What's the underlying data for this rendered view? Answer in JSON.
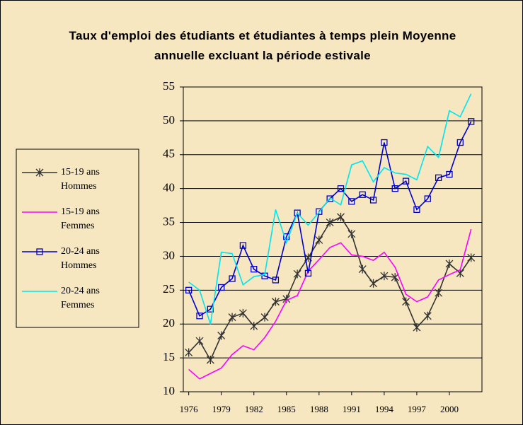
{
  "chart_data": {
    "type": "line",
    "title": "Taux d'emploi des étudiants et étudiantes à temps plein Moyenne annuelle excluant la période estivale",
    "x": [
      1976,
      1977,
      1978,
      1979,
      1980,
      1981,
      1982,
      1983,
      1984,
      1985,
      1986,
      1987,
      1988,
      1989,
      1990,
      1991,
      1992,
      1993,
      1994,
      1995,
      1996,
      1997,
      1998,
      1999,
      2000,
      2001,
      2002
    ],
    "series": [
      {
        "name": "15-19 ans Hommes",
        "color": "#333333",
        "marker": "asterisk",
        "values": [
          15.8,
          17.5,
          14.7,
          18.3,
          21.0,
          21.6,
          19.7,
          21.0,
          23.3,
          23.7,
          27.4,
          29.8,
          32.4,
          35.0,
          35.8,
          33.3,
          28.1,
          26.0,
          27.1,
          26.9,
          23.3,
          19.5,
          21.2,
          24.6,
          28.9,
          27.5,
          29.8
        ]
      },
      {
        "name": "15-19 ans Femmes",
        "color": "#ff00ff",
        "marker": "none",
        "values": [
          13.3,
          11.9,
          12.7,
          13.5,
          15.5,
          16.8,
          16.2,
          18.0,
          20.4,
          23.5,
          24.2,
          27.8,
          29.5,
          31.3,
          32.0,
          30.2,
          30.0,
          29.4,
          30.6,
          28.4,
          24.4,
          23.3,
          24.0,
          26.5,
          27.3,
          28.0,
          34.0
        ]
      },
      {
        "name": "20-24 ans Hommes",
        "color": "#0000cc",
        "marker": "square",
        "values": [
          25.0,
          21.2,
          22.2,
          25.4,
          26.7,
          31.6,
          28.1,
          27.1,
          26.5,
          32.9,
          36.4,
          27.5,
          36.6,
          38.5,
          40.0,
          38.1,
          39.1,
          38.3,
          46.8,
          40.0,
          41.1,
          36.9,
          38.5,
          41.6,
          42.1,
          46.8,
          49.9
        ]
      },
      {
        "name": "20-24 ans Femmes",
        "color": "#00e5ee",
        "marker": "none",
        "values": [
          26.2,
          25.0,
          20.0,
          30.6,
          30.4,
          25.8,
          27.0,
          27.3,
          36.9,
          32.0,
          36.4,
          34.6,
          36.5,
          38.6,
          37.6,
          43.5,
          44.1,
          41.0,
          43.1,
          42.3,
          42.1,
          41.3,
          46.2,
          44.6,
          51.5,
          50.6,
          54.0
        ]
      }
    ],
    "xlim": [
      1975.5,
      2003
    ],
    "xticks": [
      1976,
      1979,
      1982,
      1985,
      1988,
      1991,
      1994,
      1997,
      2000
    ],
    "ylim": [
      10,
      55
    ],
    "yticks": [
      10,
      15,
      20,
      25,
      30,
      35,
      40,
      45,
      50,
      55
    ],
    "grid": true,
    "legend": "left"
  }
}
